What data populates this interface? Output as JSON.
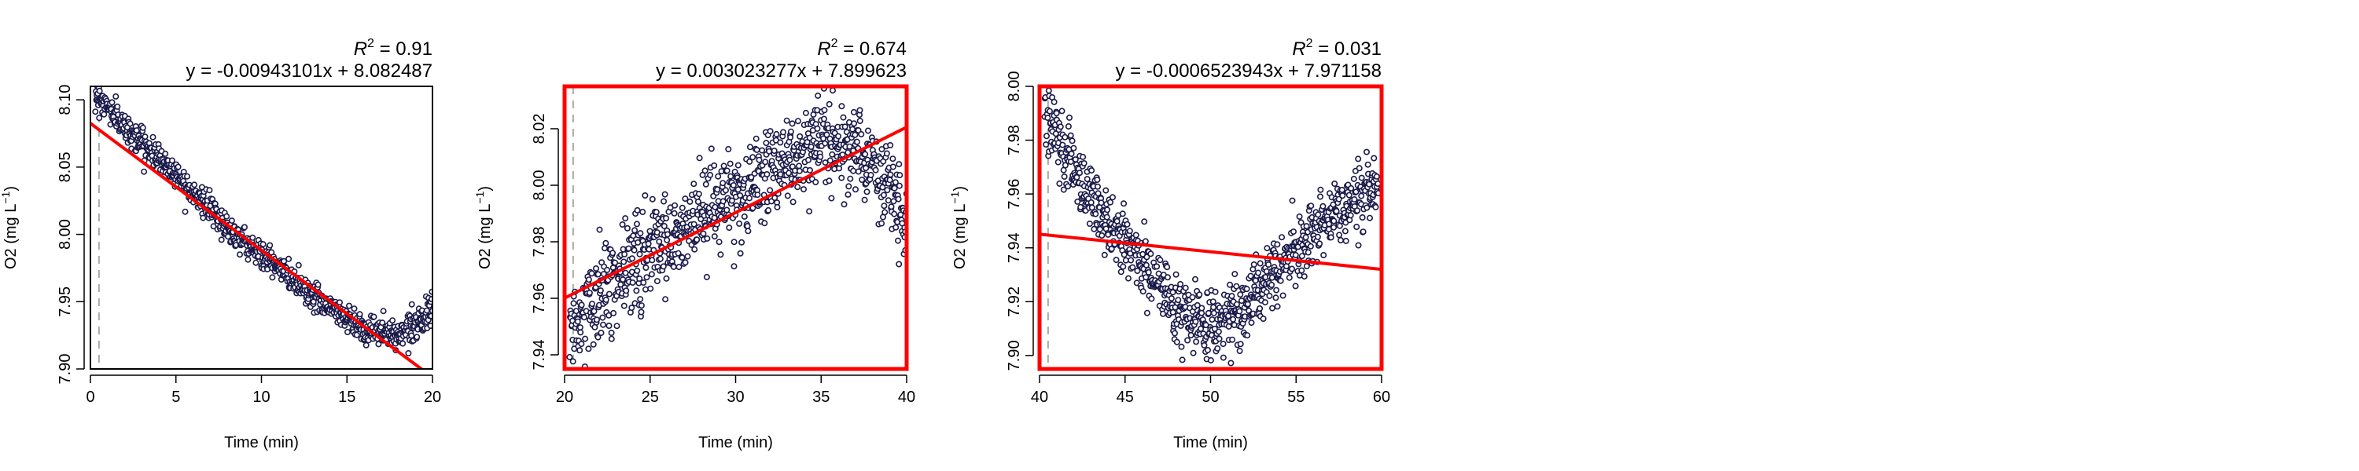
{
  "colors": {
    "points_stroke": "#1a1a4a",
    "points_fill": "#ffffff",
    "fit_line": "#ff0000",
    "highlight_frame": "#ff0000",
    "frame": "#000000",
    "marker_line": "#aaaaaa"
  },
  "chart_data": [
    {
      "type": "scatter",
      "title": "",
      "xlabel": "Time (min)",
      "ylabel_main": "O2 (mg L",
      "ylabel_sup": "−1",
      "ylabel_close": ")",
      "r2_label": "R",
      "r2_value": " = 0.91",
      "equation": "y = -0.00943101x + 8.082487",
      "slope": -0.00943101,
      "intercept": 8.082487,
      "xlim": [
        0,
        20
      ],
      "ylim": [
        7.9,
        8.11
      ],
      "xticks": [
        0,
        5,
        10,
        15,
        20
      ],
      "xtick_labels": [
        "0",
        "5",
        "10",
        "15",
        "20"
      ],
      "yticks": [
        7.9,
        7.95,
        8.0,
        8.05,
        8.1
      ],
      "ytick_labels": [
        "7.90",
        "7.95",
        "8.00",
        "8.05",
        "8.10"
      ],
      "marker_x": 0.5,
      "highlighted": false,
      "fit_x": [
        0,
        20
      ],
      "trend": [
        [
          0.3,
          8.105
        ],
        [
          2,
          8.08
        ],
        [
          5,
          8.045
        ],
        [
          8,
          8.005
        ],
        [
          11,
          7.975
        ],
        [
          13,
          7.955
        ],
        [
          16,
          7.93
        ],
        [
          18,
          7.925
        ],
        [
          19,
          7.935
        ],
        [
          20,
          7.942
        ]
      ],
      "n_points": 900,
      "noise": 0.005
    },
    {
      "type": "scatter",
      "title": "",
      "xlabel": "Time (min)",
      "ylabel_main": "O2 (mg L",
      "ylabel_sup": "−1",
      "ylabel_close": ")",
      "r2_label": "R",
      "r2_value": " = 0.674",
      "equation": "y = 0.003023277x + 7.899623",
      "slope": 0.003023277,
      "intercept": 7.899623,
      "xlim": [
        20,
        40
      ],
      "ylim": [
        7.935,
        8.035
      ],
      "xticks": [
        20,
        25,
        30,
        35,
        40
      ],
      "xtick_labels": [
        "20",
        "25",
        "30",
        "35",
        "40"
      ],
      "yticks": [
        7.94,
        7.96,
        7.98,
        8.0,
        8.02
      ],
      "ytick_labels": [
        "7.94",
        "7.96",
        "7.98",
        "8.00",
        "8.02"
      ],
      "marker_x": 20.5,
      "highlighted": true,
      "fit_x": [
        20,
        40
      ],
      "trend": [
        [
          20.3,
          7.948
        ],
        [
          22,
          7.96
        ],
        [
          25,
          7.978
        ],
        [
          28,
          7.988
        ],
        [
          30,
          7.996
        ],
        [
          33,
          8.008
        ],
        [
          35,
          8.016
        ],
        [
          37,
          8.012
        ],
        [
          39,
          8.0
        ],
        [
          40,
          7.99
        ]
      ],
      "n_points": 900,
      "noise": 0.008
    },
    {
      "type": "scatter",
      "title": "",
      "xlabel": "Time (min)",
      "ylabel_main": "O2 (mg L",
      "ylabel_sup": "−1",
      "ylabel_close": ")",
      "r2_label": "R",
      "r2_value": " = 0.031",
      "equation": "y = -0.0006523943x + 7.971158",
      "slope": -0.0006523943,
      "intercept": 7.971158,
      "xlim": [
        40,
        60
      ],
      "ylim": [
        7.895,
        8.0
      ],
      "xticks": [
        40,
        45,
        50,
        55,
        60
      ],
      "xtick_labels": [
        "40",
        "45",
        "50",
        "55",
        "60"
      ],
      "yticks": [
        7.9,
        7.92,
        7.94,
        7.96,
        7.98,
        8.0
      ],
      "ytick_labels": [
        "7.90",
        "7.92",
        "7.94",
        "7.96",
        "7.98",
        "8.00"
      ],
      "marker_x": 40.5,
      "highlighted": true,
      "fit_x": [
        40,
        60
      ],
      "trend": [
        [
          40.3,
          7.99
        ],
        [
          42,
          7.97
        ],
        [
          44,
          7.95
        ],
        [
          46,
          7.935
        ],
        [
          48,
          7.918
        ],
        [
          50,
          7.91
        ],
        [
          52,
          7.918
        ],
        [
          54,
          7.932
        ],
        [
          56,
          7.945
        ],
        [
          58,
          7.955
        ],
        [
          59.8,
          7.965
        ]
      ],
      "n_points": 900,
      "noise": 0.006
    }
  ]
}
